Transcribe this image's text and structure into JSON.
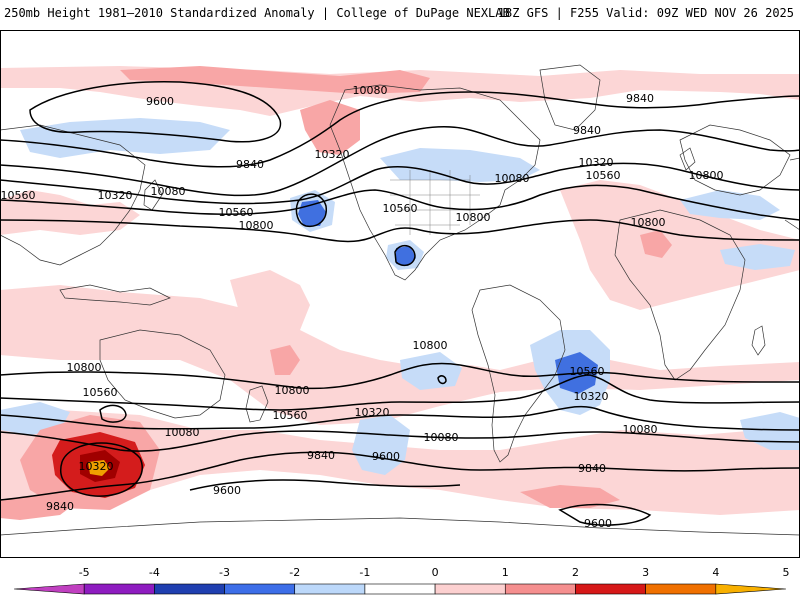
{
  "header": {
    "left_title": "250mb Height 1981–2010 Standardized Anomaly | College of DuPage NEXLAB",
    "right_title": "18Z GFS | F255 Valid: 09Z WED NOV 26 2025"
  },
  "map": {
    "contour_labels": [
      {
        "id": "c1",
        "text": "9600"
      },
      {
        "id": "c2",
        "text": "10080"
      },
      {
        "id": "c3",
        "text": "9840"
      },
      {
        "id": "c4",
        "text": "9840"
      },
      {
        "id": "c5",
        "text": "9840"
      },
      {
        "id": "c6",
        "text": "10320"
      },
      {
        "id": "c7",
        "text": "10080"
      },
      {
        "id": "c8",
        "text": "10560"
      },
      {
        "id": "c9",
        "text": "10320"
      },
      {
        "id": "c10",
        "text": "10560"
      },
      {
        "id": "c11",
        "text": "10080"
      },
      {
        "id": "c12",
        "text": "10320"
      },
      {
        "id": "c13",
        "text": "10560"
      },
      {
        "id": "c14",
        "text": "10560"
      },
      {
        "id": "c15",
        "text": "10800"
      },
      {
        "id": "c16",
        "text": "10800"
      },
      {
        "id": "c17",
        "text": "10800"
      },
      {
        "id": "c18",
        "text": "10800"
      },
      {
        "id": "c19",
        "text": "10800"
      },
      {
        "id": "c20",
        "text": "10800"
      },
      {
        "id": "c21",
        "text": "10800"
      },
      {
        "id": "c22",
        "text": "10560"
      },
      {
        "id": "c23",
        "text": "10560"
      },
      {
        "id": "c24",
        "text": "10560"
      },
      {
        "id": "c25",
        "text": "10320"
      },
      {
        "id": "c26",
        "text": "10320"
      },
      {
        "id": "c27",
        "text": "10320"
      },
      {
        "id": "c28",
        "text": "10080"
      },
      {
        "id": "c29",
        "text": "10080"
      },
      {
        "id": "c30",
        "text": "10080"
      },
      {
        "id": "c31",
        "text": "9840"
      },
      {
        "id": "c32",
        "text": "9600"
      },
      {
        "id": "c33",
        "text": "9840"
      },
      {
        "id": "c34",
        "text": "9600"
      },
      {
        "id": "c35",
        "text": "9840"
      },
      {
        "id": "c36",
        "text": "9600"
      }
    ]
  },
  "colorbar": {
    "ticks": [
      "-5",
      "-4",
      "-3",
      "-2",
      "-1",
      "0",
      "1",
      "2",
      "3",
      "4",
      "5"
    ],
    "colors": [
      "#c040c0",
      "#8e1cc0",
      "#1f3fb0",
      "#3d6ee8",
      "#bcd8fa",
      "#ffffff",
      "#fcd0d0",
      "#f58f8f",
      "#d61818",
      "#f07000",
      "#f8b000"
    ]
  }
}
